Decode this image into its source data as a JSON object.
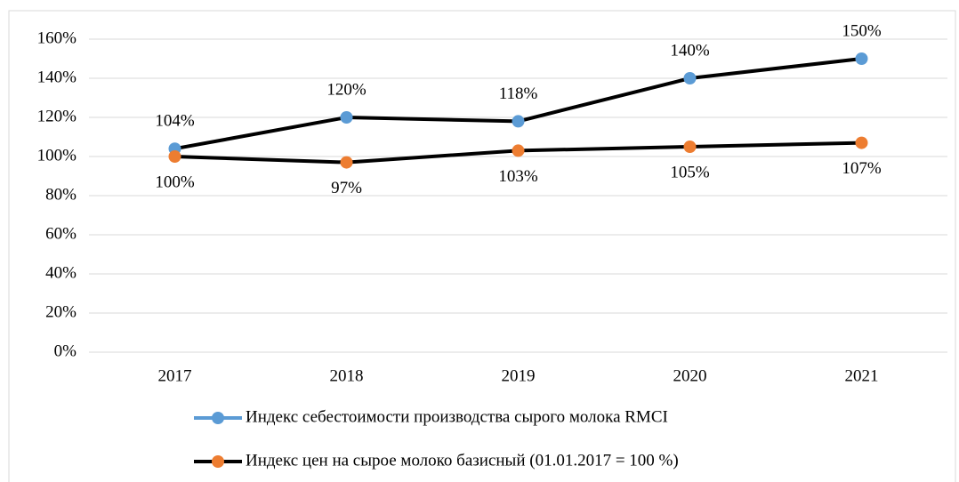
{
  "chart_data": {
    "type": "line",
    "categories": [
      "2017",
      "2018",
      "2019",
      "2020",
      "2021"
    ],
    "series": [
      {
        "name": "Индекс себестоимости производства сырого молока RMCI",
        "color": "#5b9bd5",
        "line_color": "#000000",
        "legend_line_color": "#5b9bd5",
        "values": [
          104,
          120,
          118,
          140,
          150
        ],
        "value_labels": [
          "104%",
          "120%",
          "118%",
          "140%",
          "150%"
        ],
        "label_position": "above"
      },
      {
        "name": "Индекс цен на сырое молоко базисный (01.01.2017 = 100 %)",
        "color": "#ed7d31",
        "line_color": "#000000",
        "legend_line_color": "#000000",
        "values": [
          100,
          97,
          103,
          105,
          107
        ],
        "value_labels": [
          "100%",
          "97%",
          "103%",
          "105%",
          "107%"
        ],
        "label_position": "below"
      }
    ],
    "ylim": [
      0,
      160
    ],
    "yticks": [
      {
        "value": 0,
        "label": "0%"
      },
      {
        "value": 20,
        "label": "20%"
      },
      {
        "value": 40,
        "label": "40%"
      },
      {
        "value": 60,
        "label": "60%"
      },
      {
        "value": 80,
        "label": "80%"
      },
      {
        "value": 100,
        "label": "100%"
      },
      {
        "value": 120,
        "label": "120%"
      },
      {
        "value": 140,
        "label": "140%"
      },
      {
        "value": 160,
        "label": "160%"
      }
    ],
    "grid": true,
    "legend": "bottom"
  }
}
